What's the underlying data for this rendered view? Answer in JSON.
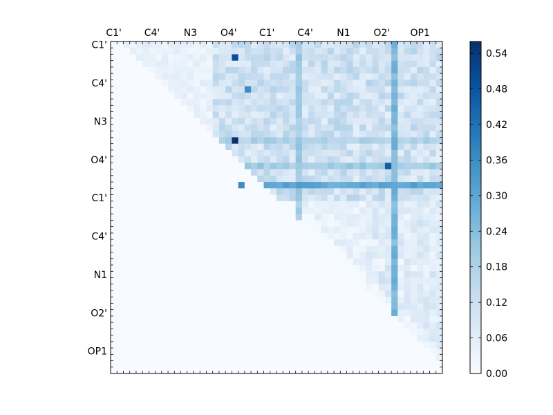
{
  "chart_data": {
    "type": "heatmap",
    "title": "",
    "xlabel": "",
    "ylabel": "",
    "n_rows": 52,
    "n_cols": 52,
    "x_tick_labels": [
      "C1'",
      "C4'",
      "N3",
      "O4'",
      "C1'",
      "C4'",
      "N1",
      "O2'",
      "OP1"
    ],
    "x_tick_positions": [
      0,
      6,
      12,
      18,
      24,
      30,
      36,
      42,
      48
    ],
    "y_tick_labels": [
      "C1'",
      "C4'",
      "N3",
      "O4'",
      "C1'",
      "C4'",
      "N1",
      "O2'",
      "OP1"
    ],
    "y_tick_positions": [
      0,
      6,
      12,
      18,
      24,
      30,
      36,
      42,
      48
    ],
    "colorbar": {
      "colormap": "Blues",
      "vmin": 0.0,
      "vmax": 0.56,
      "ticks": [
        "0.00",
        "0.06",
        "0.12",
        "0.18",
        "0.24",
        "0.30",
        "0.36",
        "0.42",
        "0.48",
        "0.54"
      ],
      "tick_values": [
        0.0,
        0.06,
        0.12,
        0.18,
        0.24,
        0.3,
        0.36,
        0.42,
        0.48,
        0.54
      ]
    },
    "structure": "upper-triangular",
    "notable_cells": [
      {
        "row": 2,
        "col": 19,
        "value": 0.5
      },
      {
        "row": 15,
        "col": 19,
        "value": 0.56
      },
      {
        "row": 19,
        "col": 43,
        "value": 0.46
      },
      {
        "row": 22,
        "col": 20,
        "value": 0.36
      },
      {
        "row": 7,
        "col": 21,
        "value": 0.36
      }
    ],
    "bright_rows": [
      {
        "row": 22,
        "level": 0.3
      },
      {
        "row": 19,
        "level": 0.2
      },
      {
        "row": 15,
        "level": 0.18
      }
    ],
    "bright_cols": [
      {
        "col": 44,
        "level": 0.26
      },
      {
        "col": 29,
        "level": 0.2
      }
    ]
  }
}
